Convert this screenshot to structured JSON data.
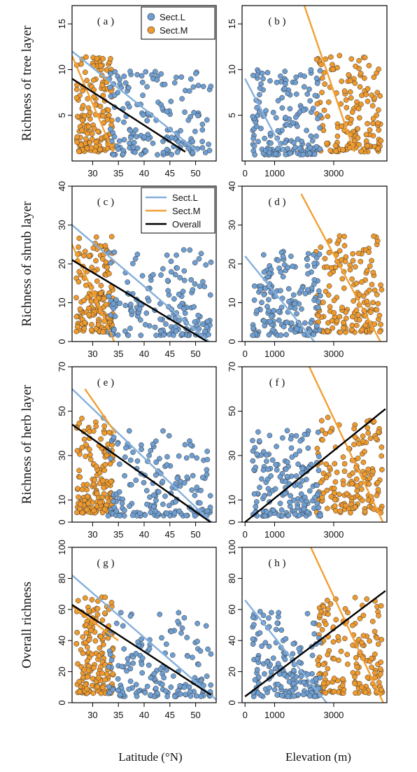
{
  "figure": {
    "xlabel_left": "Latitude (°N)",
    "xlabel_right": "Elevation (m)",
    "colors": {
      "L": "#6f9fd2",
      "M": "#ee9a2e",
      "overall": "#000000",
      "L_line": "#86b0dc",
      "M_line": "#f2a033"
    }
  },
  "chart_data": [
    {
      "id": "a",
      "tag": "( a )",
      "type": "scatter",
      "ylabel": "Richness of tree layer",
      "xlim": [
        26,
        54
      ],
      "ylim": [
        0,
        17
      ],
      "xticks": [
        30,
        35,
        40,
        45,
        50
      ],
      "yticks": [
        5,
        10,
        15
      ],
      "legend": {
        "position": "top-right",
        "entries": [
          {
            "key": "L",
            "label": "Sect.L"
          },
          {
            "key": "M",
            "label": "Sect.M"
          }
        ]
      },
      "lines": [
        {
          "key": "L",
          "x": [
            26,
            50.5
          ],
          "y": [
            12,
            1
          ]
        },
        {
          "key": "M",
          "x": [
            26,
            34
          ],
          "y": [
            11.5,
            1
          ]
        },
        {
          "key": "overall",
          "x": [
            26,
            48
          ],
          "y": [
            9,
            1
          ]
        }
      ]
    },
    {
      "id": "b",
      "tag": "( b )",
      "type": "scatter",
      "ylabel": "",
      "xlim": [
        -100,
        4800
      ],
      "ylim": [
        0,
        17
      ],
      "xticks": [
        0,
        1000,
        3000
      ],
      "yticks": [
        5,
        10,
        15
      ],
      "legend": null,
      "lines": [
        {
          "key": "L",
          "x": [
            0,
            1300
          ],
          "y": [
            9,
            1
          ]
        },
        {
          "key": "M",
          "x": [
            1900,
            3700
          ],
          "y": [
            18,
            1
          ]
        }
      ]
    },
    {
      "id": "c",
      "tag": "( c )",
      "type": "scatter",
      "ylabel": "Richness of shrub layer",
      "xlim": [
        26,
        54
      ],
      "ylim": [
        0,
        40
      ],
      "xticks": [
        30,
        35,
        40,
        45,
        50
      ],
      "yticks": [
        0,
        10,
        20,
        30,
        40
      ],
      "legend": {
        "position": "top-right",
        "entries": [
          {
            "key": "L",
            "label": "Sect.L"
          },
          {
            "key": "M",
            "label": "Sect.M"
          },
          {
            "key": "overall",
            "label": "Overall"
          }
        ]
      },
      "lines": [
        {
          "key": "L",
          "x": [
            26,
            53.5
          ],
          "y": [
            30,
            -1
          ]
        },
        {
          "key": "M",
          "x": [
            26,
            34.5
          ],
          "y": [
            25,
            -1
          ]
        },
        {
          "key": "overall",
          "x": [
            26,
            53.5
          ],
          "y": [
            21,
            -1
          ]
        }
      ]
    },
    {
      "id": "d",
      "tag": "( d )",
      "type": "scatter",
      "ylabel": "",
      "xlim": [
        -100,
        4800
      ],
      "ylim": [
        0,
        40
      ],
      "xticks": [
        0,
        1000,
        3000
      ],
      "yticks": [
        0,
        10,
        20,
        30,
        40
      ],
      "legend": null,
      "lines": [
        {
          "key": "L",
          "x": [
            0,
            2450
          ],
          "y": [
            22,
            -1
          ]
        },
        {
          "key": "M",
          "x": [
            1900,
            4650
          ],
          "y": [
            38,
            -1
          ]
        }
      ]
    },
    {
      "id": "e",
      "tag": "( e )",
      "type": "scatter",
      "ylabel": "Richness of herb layer",
      "xlim": [
        26,
        54
      ],
      "ylim": [
        0,
        70
      ],
      "xticks": [
        30,
        35,
        40,
        45,
        50
      ],
      "yticks": [
        0,
        10,
        30,
        50,
        70
      ],
      "legend": null,
      "lines": [
        {
          "key": "L",
          "x": [
            26,
            53.5
          ],
          "y": [
            60,
            -1
          ]
        },
        {
          "key": "M",
          "x": [
            28.5,
            34.5
          ],
          "y": [
            60,
            40
          ]
        },
        {
          "key": "overall",
          "x": [
            26,
            53.5
          ],
          "y": [
            44,
            -1
          ]
        }
      ]
    },
    {
      "id": "f",
      "tag": "( f )",
      "type": "scatter",
      "ylabel": "",
      "xlim": [
        -100,
        4800
      ],
      "ylim": [
        0,
        70
      ],
      "xticks": [
        0,
        1000,
        3000
      ],
      "yticks": [
        0,
        10,
        30,
        50,
        70
      ],
      "legend": null,
      "lines": [
        {
          "key": "M",
          "x": [
            2100,
            4700
          ],
          "y": [
            72,
            -1
          ]
        },
        {
          "key": "overall",
          "x": [
            0,
            4750
          ],
          "y": [
            0,
            51
          ]
        }
      ]
    },
    {
      "id": "g",
      "tag": "( g )",
      "type": "scatter",
      "ylabel": "Overall richness",
      "xlim": [
        26,
        54
      ],
      "ylim": [
        0,
        100
      ],
      "xticks": [
        30,
        35,
        40,
        45,
        50
      ],
      "yticks": [
        0,
        20,
        40,
        60,
        80,
        100
      ],
      "legend": null,
      "lines": [
        {
          "key": "L",
          "x": [
            26,
            54
          ],
          "y": [
            82,
            2
          ]
        },
        {
          "key": "M",
          "x": [
            26,
            35
          ],
          "y": [
            62,
            40
          ]
        },
        {
          "key": "overall",
          "x": [
            26,
            53
          ],
          "y": [
            63,
            5
          ]
        }
      ]
    },
    {
      "id": "h",
      "tag": "( h )",
      "type": "scatter",
      "ylabel": "",
      "xlim": [
        -100,
        4800
      ],
      "ylim": [
        0,
        100
      ],
      "xticks": [
        0,
        1000,
        3000
      ],
      "yticks": [
        0,
        20,
        40,
        60,
        80,
        100
      ],
      "legend": null,
      "lines": [
        {
          "key": "L",
          "x": [
            0,
            2800
          ],
          "y": [
            66,
            -1
          ]
        },
        {
          "key": "M",
          "x": [
            2200,
            4700
          ],
          "y": [
            101,
            -1
          ]
        },
        {
          "key": "overall",
          "x": [
            0,
            4750
          ],
          "y": [
            4,
            72
          ]
        }
      ]
    }
  ]
}
